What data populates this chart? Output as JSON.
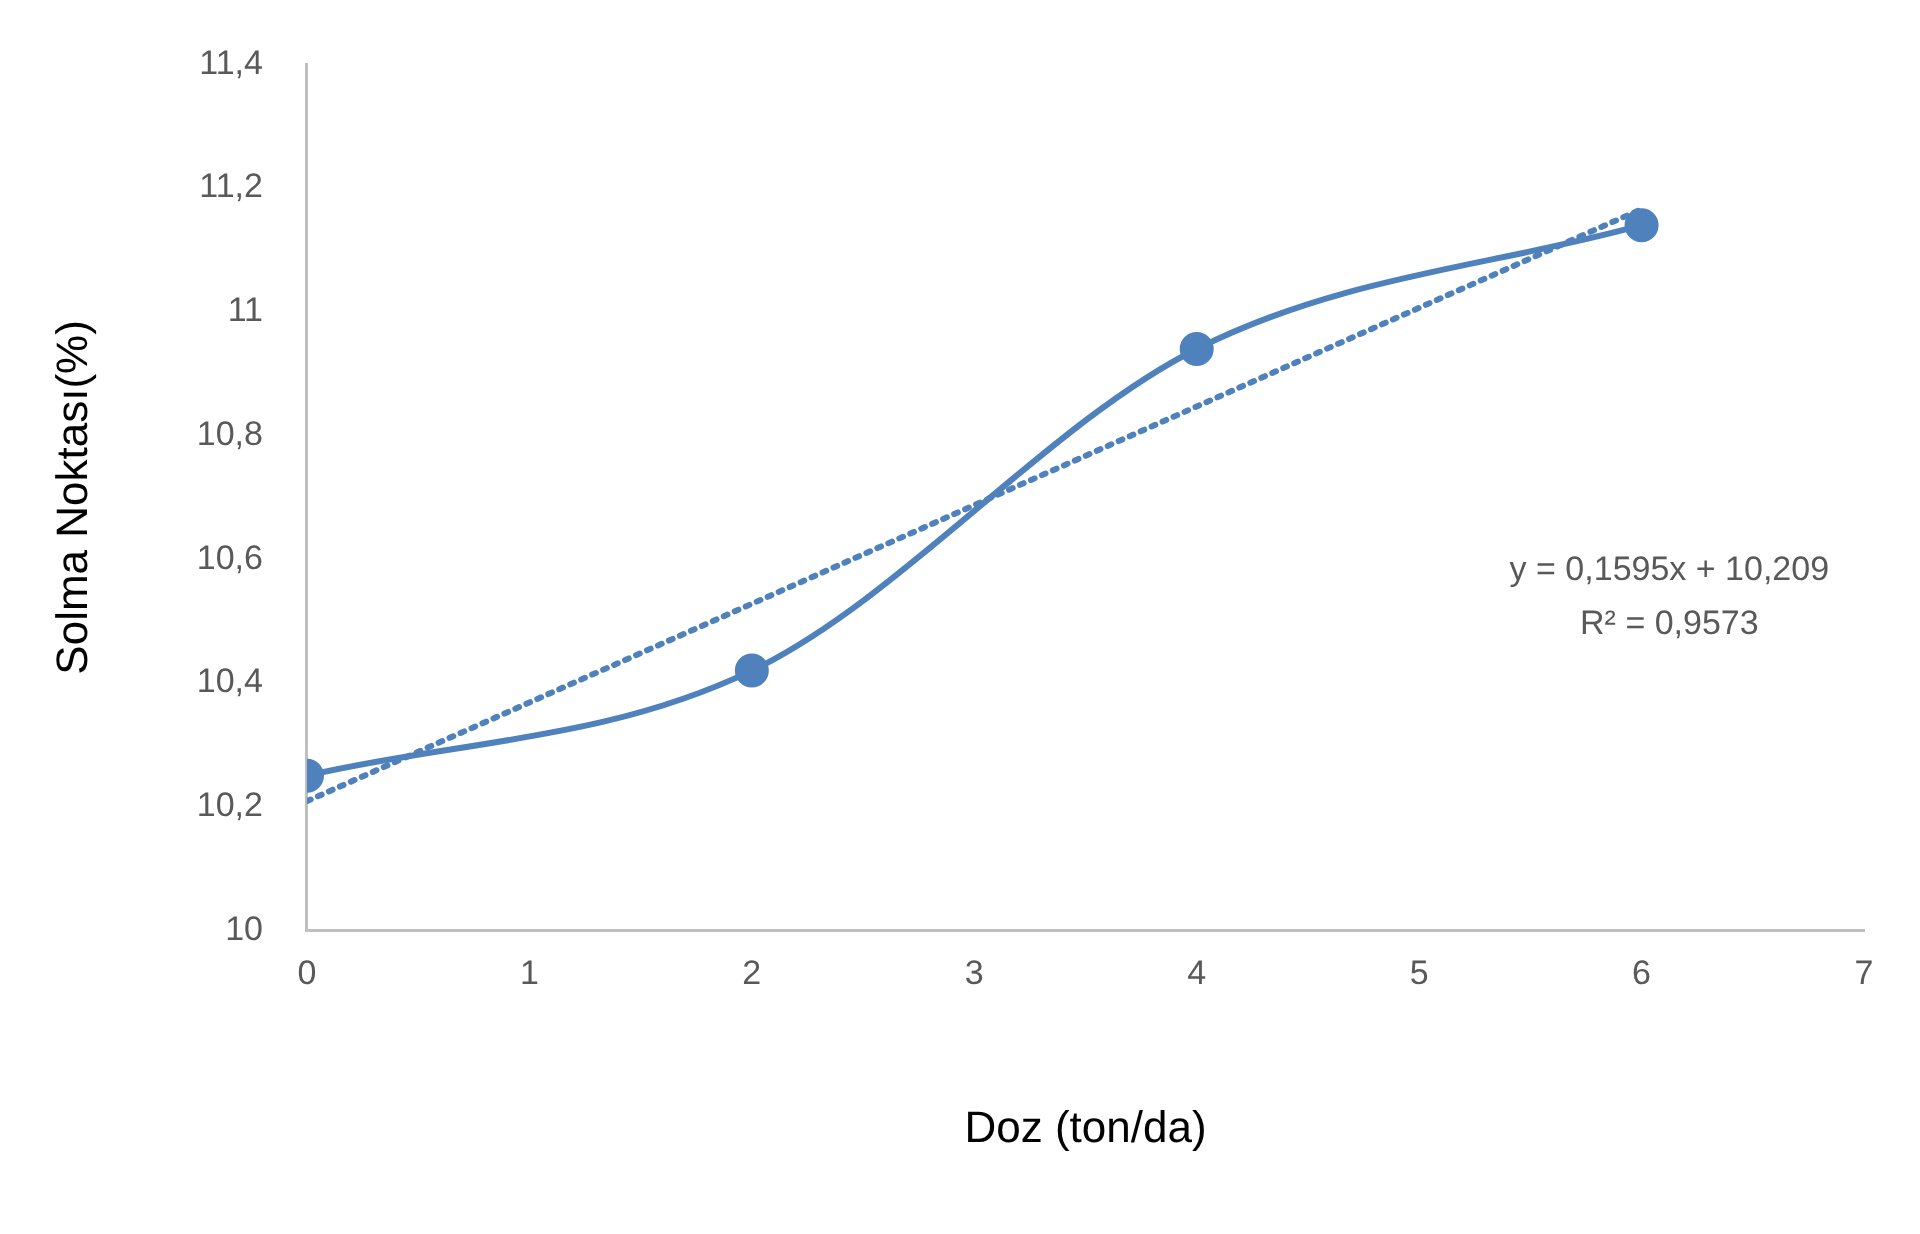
{
  "chart_data": {
    "type": "line",
    "xlabel": "Doz (ton/da)",
    "ylabel": "Solma Noktası(%)",
    "x": [
      0,
      2,
      4,
      6
    ],
    "series": [
      {
        "color": "#4f81bd",
        "values": [
          10.25,
          10.42,
          10.94,
          11.14
        ],
        "marker": "circle",
        "line_style": "solid"
      },
      {
        "color": "#4f81bd",
        "x": [
          0,
          6
        ],
        "values": [
          10.209,
          11.166
        ],
        "marker": "none",
        "line_style": "dotted"
      }
    ],
    "xlim": [
      0,
      7
    ],
    "xticks": [
      0,
      1,
      2,
      3,
      4,
      5,
      6,
      7
    ],
    "ylim": [
      10,
      11.4
    ],
    "yticks": [
      10,
      {
        "value": 10.2,
        "label": "10,2"
      },
      {
        "value": 10.4,
        "label": "10,4"
      },
      {
        "value": 10.6,
        "label": "10,6"
      },
      {
        "value": 10.8,
        "label": "10,8"
      },
      11,
      {
        "value": 11.2,
        "label": "11,2"
      },
      {
        "value": 11.4,
        "label": "11,4"
      }
    ],
    "annotations": [
      "y = 0,1595x + 10,209",
      "R² = 0,9573"
    ],
    "grid": false,
    "legend": false
  }
}
